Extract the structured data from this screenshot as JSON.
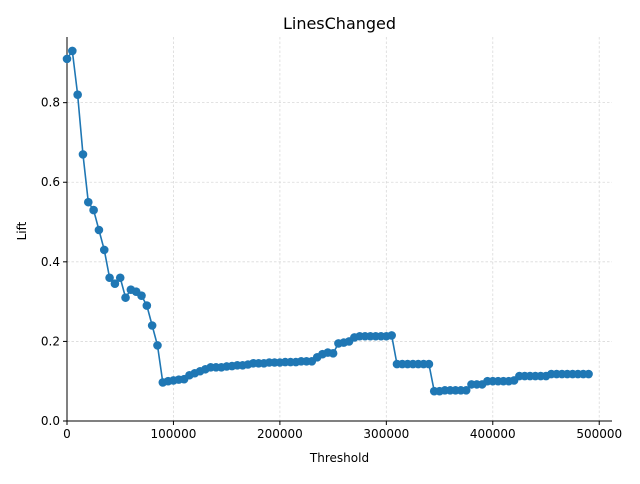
{
  "chart_data": {
    "type": "line",
    "title": "LinesChanged",
    "xlabel": "Threshold",
    "ylabel": "Lift",
    "xlim": [
      0,
      512000
    ],
    "ylim": [
      0,
      0.965
    ],
    "grid": true,
    "legend": "none",
    "colors": {
      "series": "#1f77b4",
      "grid": "#d9d9d9",
      "axis": "#000000"
    },
    "x_ticks": [
      {
        "value": 0,
        "label": "0"
      },
      {
        "value": 100000,
        "label": "100000"
      },
      {
        "value": 200000,
        "label": "200000"
      },
      {
        "value": 300000,
        "label": "300000"
      },
      {
        "value": 400000,
        "label": "400000"
      },
      {
        "value": 500000,
        "label": "500000"
      }
    ],
    "y_ticks": [
      {
        "value": 0,
        "label": "0.0"
      },
      {
        "value": 0.2,
        "label": "0.2"
      },
      {
        "value": 0.4,
        "label": "0.4"
      },
      {
        "value": 0.6,
        "label": "0.6"
      },
      {
        "value": 0.8,
        "label": "0.8"
      }
    ],
    "series": [
      {
        "x": [
          0,
          5000,
          10000,
          15000,
          20000,
          25000,
          30000,
          35000,
          40000,
          45000,
          50000,
          55000,
          60000,
          65000,
          70000,
          75000,
          80000,
          85000,
          90000,
          95000,
          100000,
          105000,
          110000,
          115000,
          120000,
          125000,
          130000,
          135000,
          140000,
          145000,
          150000,
          155000,
          160000,
          165000,
          170000,
          175000,
          180000,
          185000,
          190000,
          195000,
          200000,
          205000,
          210000,
          215000,
          220000,
          225000,
          230000,
          235000,
          240000,
          245000,
          250000,
          255000,
          260000,
          265000,
          270000,
          275000,
          280000,
          285000,
          290000,
          295000,
          300000,
          305000,
          310000,
          315000,
          320000,
          325000,
          330000,
          335000,
          340000,
          345000,
          350000,
          355000,
          360000,
          365000,
          370000,
          375000,
          380000,
          385000,
          390000,
          395000,
          400000,
          405000,
          410000,
          415000,
          420000,
          425000,
          430000,
          435000,
          440000,
          445000,
          450000,
          455000,
          460000,
          465000,
          470000,
          475000,
          480000,
          485000,
          490000
        ],
        "y": [
          0.91,
          0.93,
          0.82,
          0.67,
          0.55,
          0.53,
          0.48,
          0.43,
          0.36,
          0.345,
          0.36,
          0.31,
          0.33,
          0.325,
          0.315,
          0.29,
          0.24,
          0.19,
          0.097,
          0.1,
          0.102,
          0.104,
          0.105,
          0.115,
          0.12,
          0.125,
          0.13,
          0.135,
          0.135,
          0.135,
          0.137,
          0.138,
          0.14,
          0.14,
          0.142,
          0.145,
          0.145,
          0.145,
          0.147,
          0.147,
          0.147,
          0.148,
          0.148,
          0.148,
          0.15,
          0.15,
          0.15,
          0.16,
          0.168,
          0.172,
          0.17,
          0.195,
          0.197,
          0.2,
          0.21,
          0.213,
          0.213,
          0.213,
          0.213,
          0.213,
          0.213,
          0.215,
          0.143,
          0.143,
          0.143,
          0.143,
          0.143,
          0.143,
          0.143,
          0.075,
          0.075,
          0.077,
          0.077,
          0.077,
          0.077,
          0.077,
          0.092,
          0.092,
          0.092,
          0.1,
          0.1,
          0.1,
          0.1,
          0.1,
          0.102,
          0.113,
          0.113,
          0.113,
          0.113,
          0.113,
          0.113,
          0.118,
          0.118,
          0.118,
          0.118,
          0.118,
          0.118,
          0.118,
          0.118
        ]
      }
    ]
  }
}
